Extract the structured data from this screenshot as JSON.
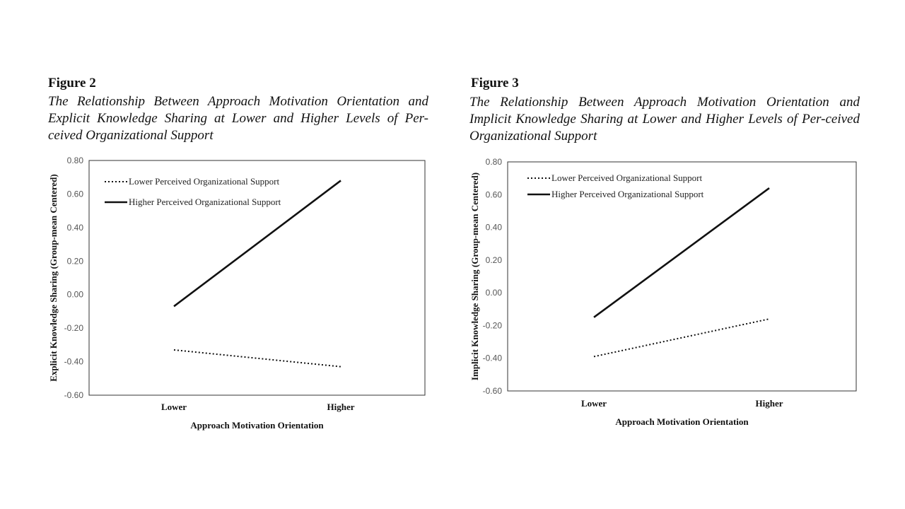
{
  "figures": [
    {
      "label": "Figure 2",
      "caption": "The Relationship Between Approach Motivation Orientation and Explicit Knowledge Sharing at Lower and Higher Levels of Per-ceived Organizational Support"
    },
    {
      "label": "Figure 3",
      "caption": "The Relationship Between Approach Motivation Orientation and Implicit Knowledge Sharing at Lower and Higher Levels of Per-ceived Organizational Support"
    }
  ],
  "chart_data": [
    {
      "type": "line",
      "title": "",
      "xlabel": "Approach Motivation Orientation",
      "ylabel": "Explicit Knowledge Sharing (Group-mean Centered)",
      "categories": [
        "Lower",
        "Higher"
      ],
      "ylim": [
        -0.6,
        0.8
      ],
      "yticks": [
        "0.80",
        "0.60",
        "0.40",
        "0.20",
        "0.00",
        "-0.20",
        "-0.40",
        "-0.60"
      ],
      "grid": false,
      "legend_position": "top-left",
      "series": [
        {
          "name": "Lower Perceived Organizational Support",
          "values": [
            -0.33,
            -0.43
          ],
          "style": "dotted"
        },
        {
          "name": "Higher Perceived Organizational Support",
          "values": [
            -0.07,
            0.68
          ],
          "style": "solid"
        }
      ]
    },
    {
      "type": "line",
      "title": "",
      "xlabel": "Approach Motivation Orientation",
      "ylabel": "Implicit Knowledge Sharing (Group-mean Centered)",
      "categories": [
        "Lower",
        "Higher"
      ],
      "ylim": [
        -0.6,
        0.8
      ],
      "yticks": [
        "0.80",
        "0.60",
        "0.40",
        "0.20",
        "0.00",
        "-0.20",
        "-0.40",
        "-0.60"
      ],
      "grid": false,
      "legend_position": "top-left",
      "series": [
        {
          "name": "Lower Perceived Organizational Support",
          "values": [
            -0.39,
            -0.16
          ],
          "style": "dotted"
        },
        {
          "name": "Higher Perceived Organizational Support",
          "values": [
            -0.15,
            0.64
          ],
          "style": "solid"
        }
      ]
    }
  ]
}
